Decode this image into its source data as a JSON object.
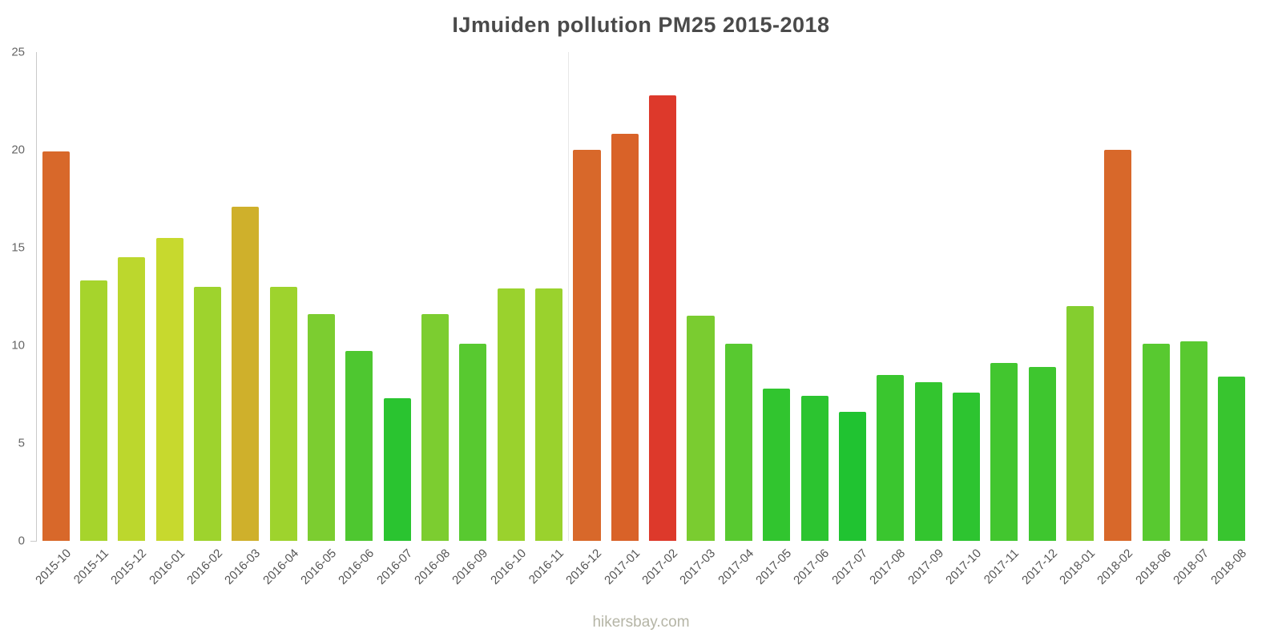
{
  "page": {
    "footer_link": "hikersbay.com"
  },
  "chart_data": {
    "type": "bar",
    "title": "IJmuiden pollution PM25 2015-2018",
    "xlabel": "",
    "ylabel": "",
    "ylim": [
      0,
      25
    ],
    "yticks": [
      0,
      5,
      10,
      15,
      20,
      25
    ],
    "grid": false,
    "legend": false,
    "divider_before_category": "2016-12",
    "categories": [
      "2015-10",
      "2015-11",
      "2015-12",
      "2016-01",
      "2016-02",
      "2016-03",
      "2016-04",
      "2016-05",
      "2016-06",
      "2016-07",
      "2016-08",
      "2016-09",
      "2016-10",
      "2016-11",
      "2016-12",
      "2017-01",
      "2017-02",
      "2017-03",
      "2017-04",
      "2017-05",
      "2017-06",
      "2017-07",
      "2017-08",
      "2017-09",
      "2017-10",
      "2017-11",
      "2017-12",
      "2018-01",
      "2018-02",
      "2018-06",
      "2018-07",
      "2018-08"
    ],
    "values": [
      19.9,
      13.3,
      14.5,
      15.5,
      13.0,
      17.1,
      13.0,
      11.6,
      9.7,
      7.3,
      11.6,
      10.1,
      12.9,
      12.9,
      20.0,
      20.8,
      22.8,
      11.5,
      10.1,
      7.8,
      7.4,
      6.6,
      8.5,
      8.1,
      7.6,
      9.1,
      8.9,
      12.0,
      20.0,
      10.1,
      10.2,
      8.4
    ],
    "bar_colors": [
      "#d8682a",
      "#a6d42c",
      "#bcd72d",
      "#c7d92e",
      "#9ed32d",
      "#cfb02b",
      "#9ed32d",
      "#7ccd30",
      "#4ec730",
      "#2ac430",
      "#7ccd30",
      "#58c930",
      "#9ad22d",
      "#9ad22d",
      "#d8682a",
      "#d96228",
      "#dd392b",
      "#7acc30",
      "#58c930",
      "#31c52f",
      "#2cc430",
      "#20c331",
      "#3ac62f",
      "#33c52f",
      "#2dc430",
      "#42c62f",
      "#3ec62f",
      "#84ce2f",
      "#d8682a",
      "#58c930",
      "#59c930",
      "#38c52f"
    ],
    "colors": {
      "title": "#4a4a4a",
      "axis": "#c9c9c9",
      "tick_label": "#666666",
      "x_label": "#555555",
      "footer": "#b5b5a6",
      "background": "#ffffff"
    }
  }
}
